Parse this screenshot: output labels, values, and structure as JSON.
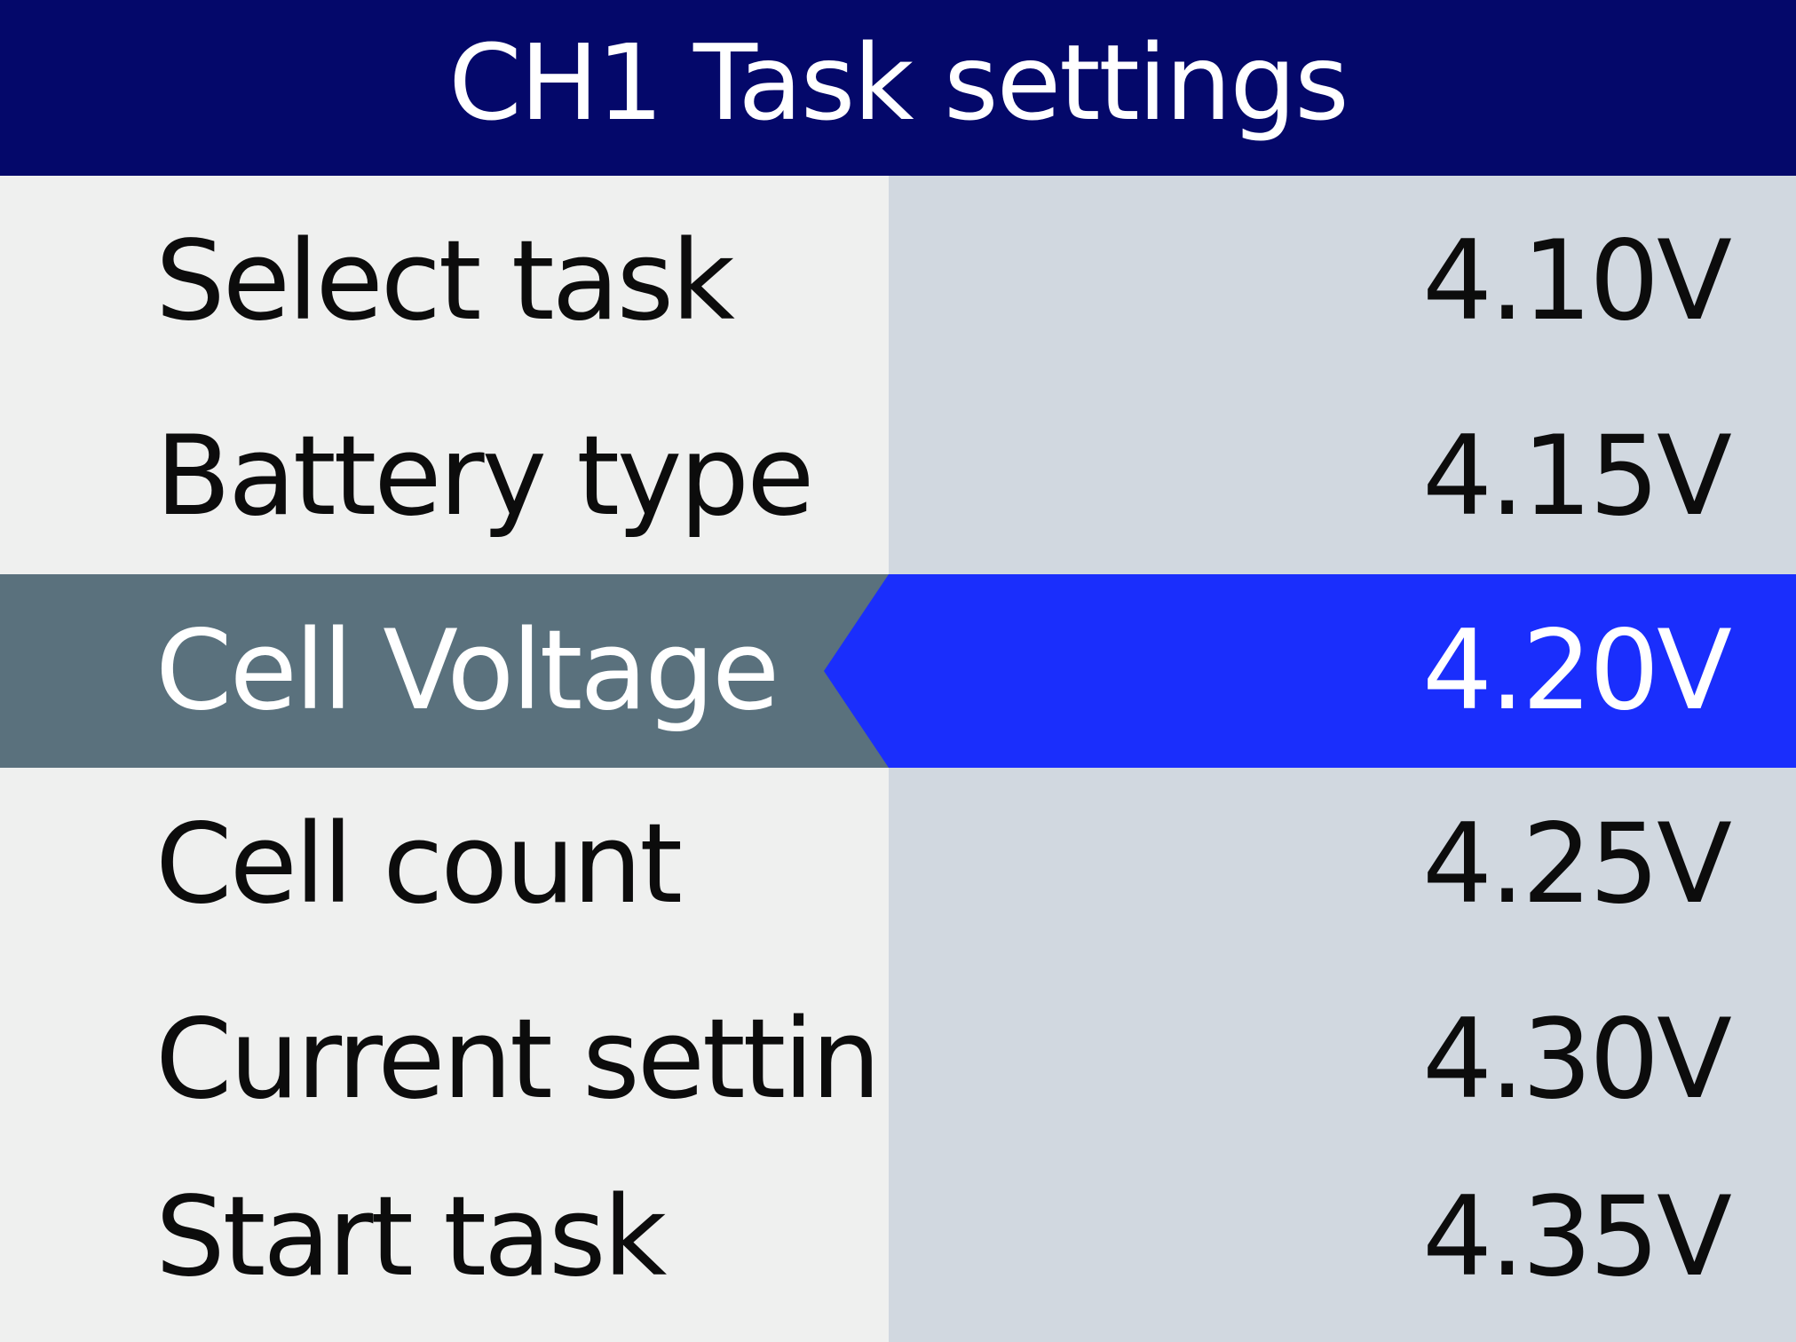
{
  "header": {
    "title": "CH1 Task settings"
  },
  "menu": {
    "items": [
      {
        "label": "Select task"
      },
      {
        "label": "Battery type"
      },
      {
        "label": "Cell Voltage"
      },
      {
        "label": "Cell count"
      },
      {
        "label": "Current settin"
      },
      {
        "label": "Start task"
      }
    ],
    "selected_index": 2
  },
  "picker": {
    "options": [
      {
        "value": "4.10V"
      },
      {
        "value": "4.15V"
      },
      {
        "value": "4.20V"
      },
      {
        "value": "4.25V"
      },
      {
        "value": "4.30V"
      },
      {
        "value": "4.35V"
      }
    ],
    "selected_index": 2
  },
  "colors": {
    "header_bg": "#04086a",
    "left_bg": "#eff0ef",
    "right_bg": "#d1d8e0",
    "selected_left_bg": "#5a717d",
    "selected_right_bg": "#1a2efc"
  }
}
